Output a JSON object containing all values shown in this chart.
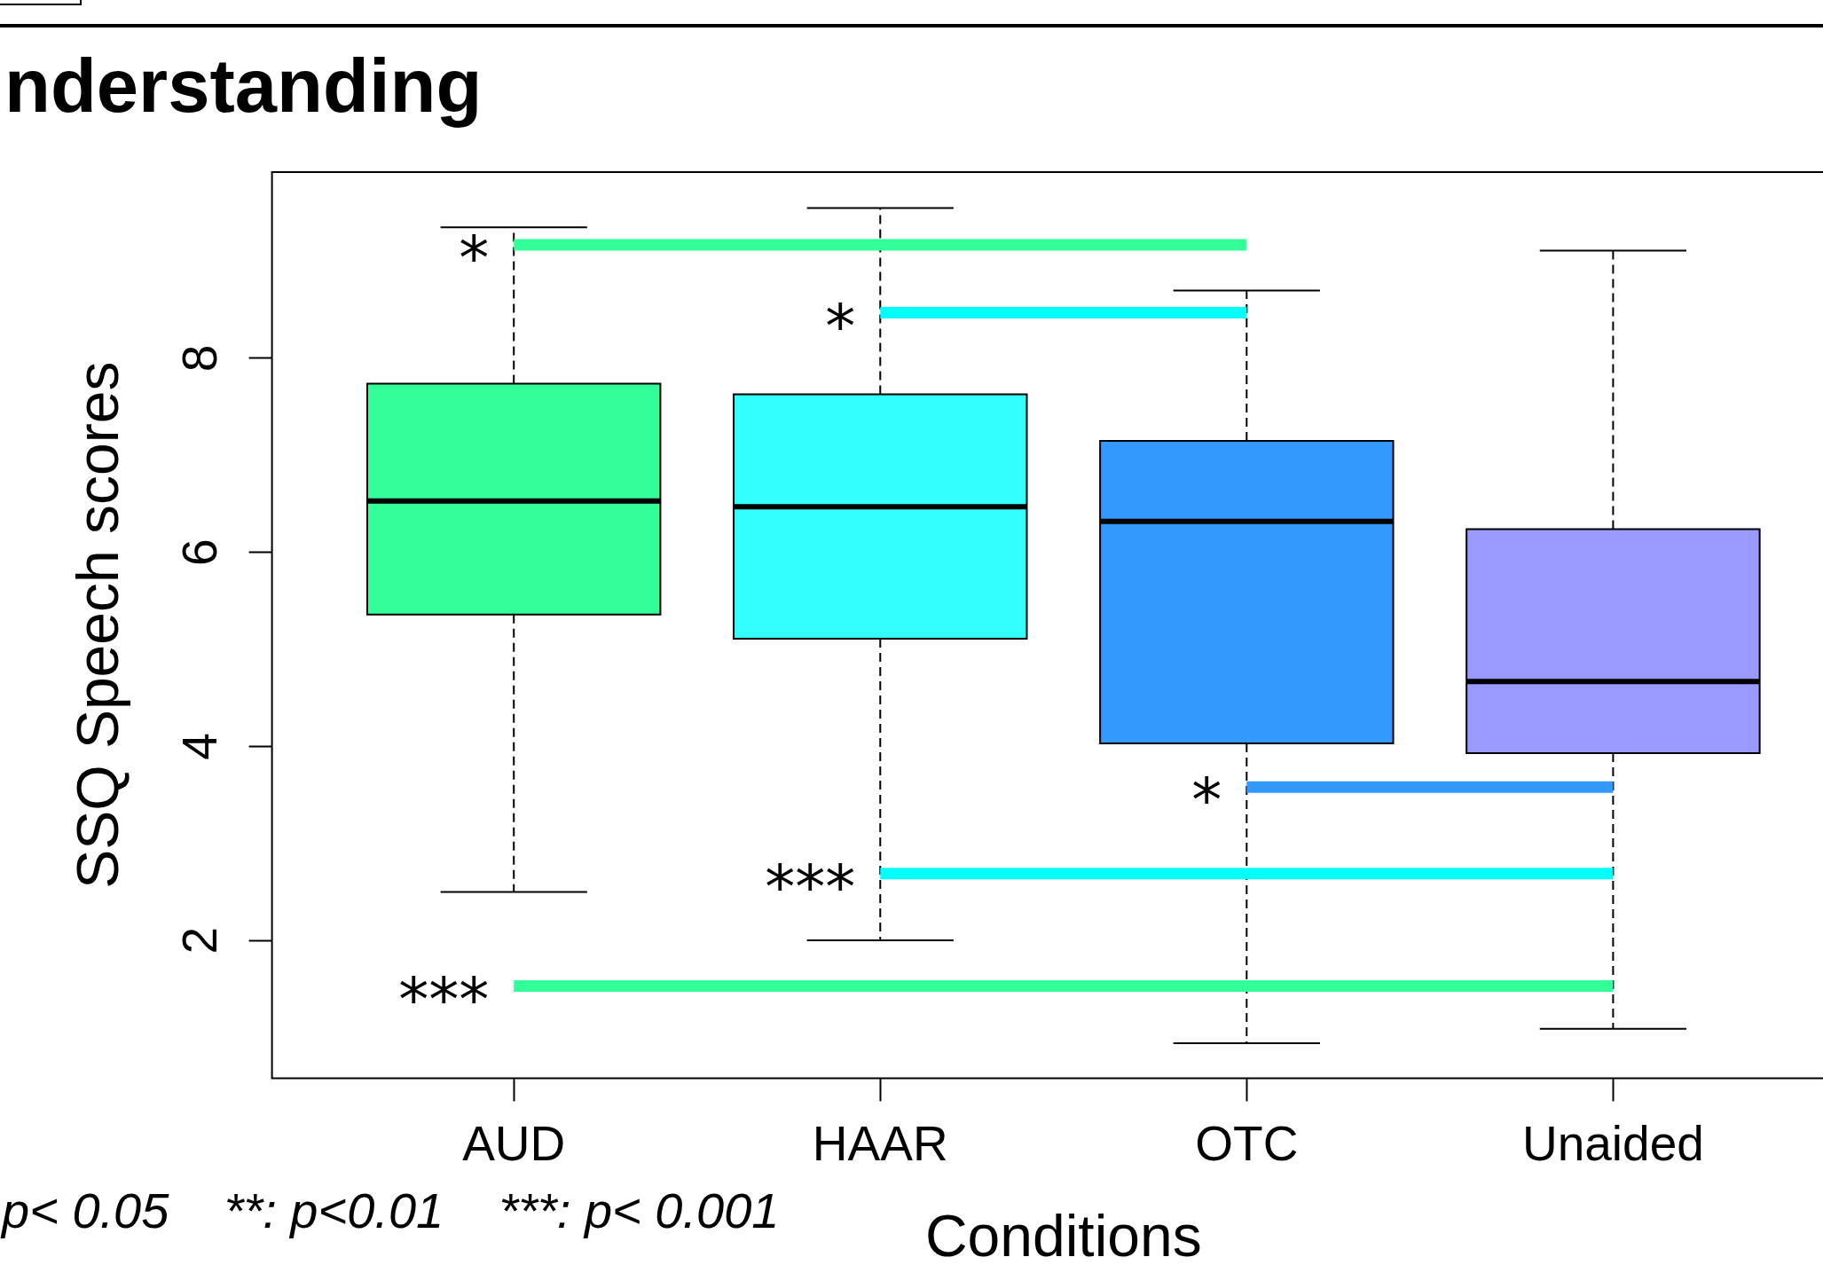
{
  "chart_data": {
    "type": "box",
    "title": "nderstanding",
    "xlabel": "Conditions",
    "ylabel": "SSQ Speech scores",
    "categories": [
      "AUD",
      "HAAR",
      "OTC",
      "Unaided"
    ],
    "ylim": [
      0.58,
      9.92
    ],
    "yticks": [
      2,
      4,
      6,
      8
    ],
    "series": [
      {
        "colors": [
          "#33ff99",
          "#33ffff",
          "#3399ff",
          "#9999ff"
        ],
        "boxes": [
          {
            "low": 2.5,
            "q1": 5.36,
            "median": 6.53,
            "q3": 7.74,
            "high": 9.35
          },
          {
            "low": 2.0,
            "q1": 5.11,
            "median": 6.47,
            "q3": 7.63,
            "high": 9.55
          },
          {
            "low": 0.94,
            "q1": 4.03,
            "median": 6.32,
            "q3": 7.15,
            "high": 8.7
          },
          {
            "low": 1.09,
            "q1": 3.93,
            "median": 4.67,
            "q3": 6.24,
            "high": 9.11
          }
        ]
      },
      {
        "type": "line",
        "x": [
          "AUD",
          "OTC"
        ],
        "values": [
          9.17,
          9.17
        ],
        "color": "#33ff99"
      },
      {
        "type": "line",
        "x": [
          "HAAR",
          "OTC"
        ],
        "values": [
          8.47,
          8.47
        ],
        "color": "#00ffff"
      },
      {
        "type": "line",
        "x": [
          "OTC",
          "Unaided"
        ],
        "values": [
          3.58,
          3.58
        ],
        "color": "#3399ff"
      },
      {
        "type": "line",
        "x": [
          "HAAR",
          "Unaided"
        ],
        "values": [
          2.69,
          2.69
        ],
        "color": "#00ffff"
      },
      {
        "type": "line",
        "x": [
          "AUD",
          "Unaided"
        ],
        "values": [
          1.53,
          1.53
        ],
        "color": "#33ff99"
      }
    ],
    "annotations": [
      "p< 0.05    **: p<0.01    ***: p< 0.001",
      {
        "text": "*",
        "x": "AUD",
        "y": 9.17
      },
      {
        "text": "*",
        "x": "HAAR",
        "y": 8.47
      },
      {
        "text": "*",
        "x": "OTC",
        "y": 3.58
      },
      {
        "text": "***",
        "x": "HAAR",
        "y": 2.69
      },
      {
        "text": "***",
        "x": "AUD",
        "y": 1.53
      }
    ]
  }
}
